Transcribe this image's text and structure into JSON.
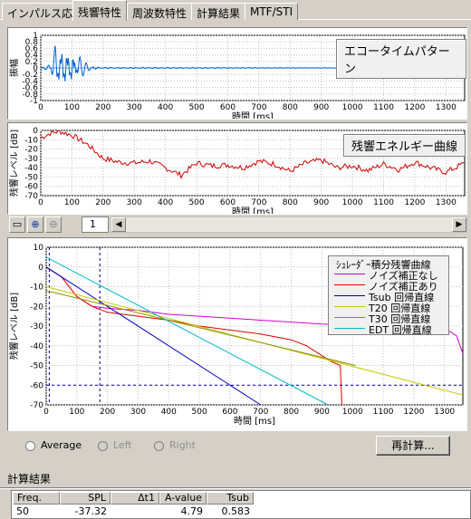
{
  "tabs": [
    "インパルス応答",
    "残響特性",
    "周波数特性",
    "計算結果",
    "MTF/STI"
  ],
  "active_tab": 1,
  "echo": {
    "title": "エコータイムパターン",
    "ylabel": "振幅",
    "xlabel": "時間 [ms]",
    "yticks": [
      "1",
      "0.8",
      "0.6",
      "0.4",
      "0.2",
      "0",
      "-0.2",
      "-0.4",
      "-0.6",
      "-0.8",
      "-1"
    ],
    "xticks": [
      "0",
      "100",
      "200",
      "300",
      "400",
      "500",
      "600",
      "700",
      "800",
      "900",
      "1000",
      "1100",
      "1200",
      "1300"
    ]
  },
  "decay": {
    "title": "残響エネルギー曲線",
    "ylabel": "残響レベル [dB]",
    "xlabel": "時間 [ms]",
    "yticks": [
      "0",
      "-10",
      "-20",
      "-30",
      "-40",
      "-50",
      "-60",
      "-70"
    ],
    "xticks": [
      "0",
      "100",
      "200",
      "300",
      "400",
      "500",
      "600",
      "700",
      "800",
      "900",
      "1000",
      "1100",
      "1200",
      "1300"
    ]
  },
  "toolbar": {
    "page": "1"
  },
  "main": {
    "ylabel": "残響レベル [dB]",
    "xlabel": "時間 [ms]",
    "yticks": [
      "10",
      "0",
      "-10",
      "-20",
      "-30",
      "-40",
      "-50",
      "-60",
      "-70"
    ],
    "xticks": [
      "0",
      "100",
      "200",
      "300",
      "400",
      "500",
      "600",
      "700",
      "800",
      "900",
      "1000",
      "1100",
      "1200",
      "1300"
    ]
  },
  "legend": {
    "title": "ｼｭﾚｰﾀﾞｰ積分残響曲線",
    "items": [
      {
        "label": "ノイズ補正なし",
        "color": "#d000d0"
      },
      {
        "label": "ノイズ補正あり",
        "color": "#e00000"
      },
      {
        "label": "Tsub 回帰直線",
        "color": "#0000c0"
      },
      {
        "label": "T20 回帰直線",
        "color": "#c8c800"
      },
      {
        "label": "T30 回帰直線",
        "color": "#909000"
      },
      {
        "label": "EDT 回帰直線",
        "color": "#00b8c8"
      }
    ]
  },
  "chart_data": [
    {
      "type": "line",
      "title": "エコータイムパターン",
      "xlabel": "時間 [ms]",
      "ylabel": "振幅",
      "xlim": [
        0,
        1360
      ],
      "ylim": [
        -1,
        1
      ],
      "series": [
        {
          "x": [
            0,
            30,
            50,
            60,
            70,
            80,
            90,
            100,
            110,
            120,
            140,
            160,
            200,
            400,
            800,
            1360
          ],
          "values": [
            0,
            0.1,
            -0.9,
            0.9,
            -1,
            1,
            -0.8,
            0.8,
            -0.5,
            0.4,
            0.2,
            0.05,
            0.02,
            0.02,
            0.01,
            0
          ]
        }
      ]
    },
    {
      "type": "line",
      "title": "残響エネルギー曲線",
      "xlabel": "時間 [ms]",
      "ylabel": "残響レベル [dB]",
      "xlim": [
        0,
        1360
      ],
      "ylim": [
        -70,
        0
      ],
      "series": [
        {
          "x": [
            0,
            30,
            60,
            100,
            150,
            200,
            250,
            300,
            350,
            400,
            450,
            500,
            550,
            600,
            650,
            700,
            750,
            800,
            850,
            900,
            950,
            1000,
            1050,
            1100,
            1150,
            1200,
            1250,
            1300,
            1360
          ],
          "values": [
            -8,
            -3,
            -1,
            -5,
            -15,
            -30,
            -34,
            -35,
            -33,
            -40,
            -48,
            -35,
            -38,
            -37,
            -40,
            -33,
            -36,
            -44,
            -35,
            -32,
            -40,
            -38,
            -43,
            -36,
            -42,
            -34,
            -40,
            -45,
            -35
          ]
        }
      ]
    },
    {
      "type": "line",
      "title": "ｼｭﾚｰﾀﾞｰ積分残響曲線",
      "xlabel": "時間 [ms]",
      "ylabel": "残響レベル [dB]",
      "xlim": [
        0,
        1360
      ],
      "ylim": [
        -70,
        10
      ],
      "series": [
        {
          "name": "ノイズ補正なし",
          "color": "#d000d0",
          "x": [
            0,
            50,
            100,
            150,
            200,
            300,
            400,
            500,
            600,
            700,
            800,
            900,
            1000,
            1100,
            1200,
            1300,
            1340,
            1360
          ],
          "values": [
            0,
            -5,
            -15,
            -20,
            -21,
            -22,
            -24,
            -25,
            -26,
            -27,
            -28,
            -29,
            -29.5,
            -30,
            -30.5,
            -31,
            -35,
            -44
          ]
        },
        {
          "name": "ノイズ補正あり",
          "color": "#e00000",
          "x": [
            0,
            50,
            100,
            150,
            200,
            300,
            400,
            500,
            600,
            700,
            800,
            850,
            880,
            900,
            930,
            960,
            965
          ],
          "values": [
            0,
            -5,
            -15,
            -20,
            -23,
            -25,
            -27,
            -30,
            -32,
            -34,
            -37,
            -40,
            -43,
            -45,
            -48,
            -50,
            -70
          ]
        },
        {
          "name": "Tsub 回帰直線",
          "color": "#0000c0",
          "x": [
            0,
            700
          ],
          "values": [
            0,
            -70
          ]
        },
        {
          "name": "T20 回帰直線",
          "color": "#c8c800",
          "x": [
            0,
            1360
          ],
          "values": [
            -10,
            -65
          ]
        },
        {
          "name": "T30 回帰直線",
          "color": "#909000",
          "x": [
            0,
            1010
          ],
          "values": [
            -12,
            -50
          ]
        },
        {
          "name": "EDT 回帰直線",
          "color": "#00b8c8",
          "x": [
            0,
            920
          ],
          "values": [
            5,
            -70
          ]
        }
      ]
    }
  ],
  "radios": [
    {
      "label": "Average",
      "disabled": false
    },
    {
      "label": "Left",
      "disabled": true
    },
    {
      "label": "Right",
      "disabled": true
    }
  ],
  "recalc_label": "再計算...",
  "results": {
    "section": "計算結果",
    "headers": [
      "Freq.",
      "SPL",
      "Δt1",
      "A-value",
      "Tsub"
    ],
    "row": [
      "50",
      "-37.32",
      "",
      "4.79",
      "0.583"
    ]
  }
}
